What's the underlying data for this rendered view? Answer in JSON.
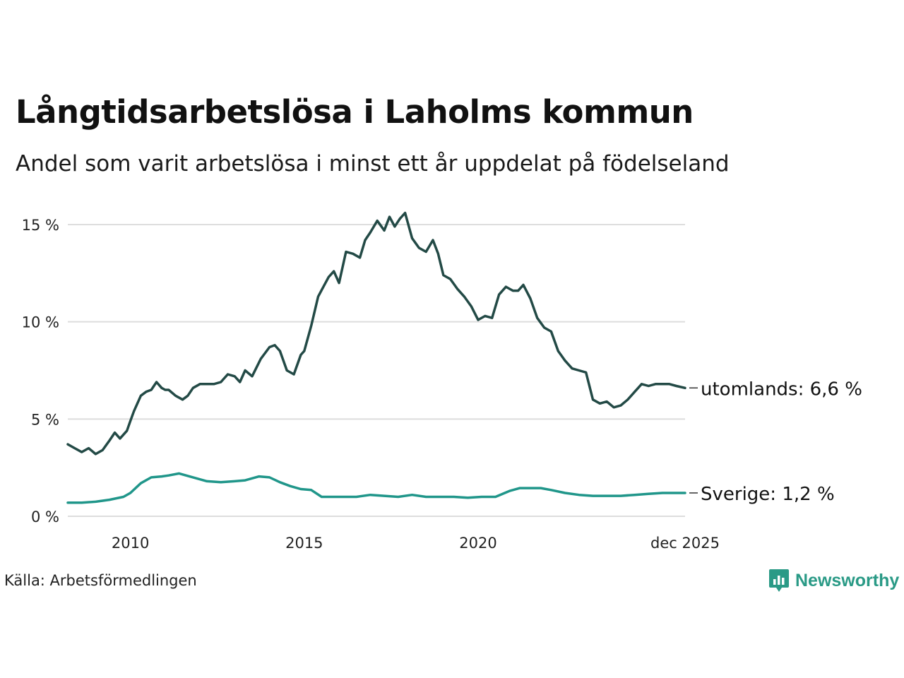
{
  "title": "Långtidsarbetslösa i Laholms kommun",
  "subtitle": "Andel som varit arbetslösa i minst ett år uppdelat på födelseland",
  "source": "Källa: Arbetsförmedlingen",
  "brand": {
    "name": "Newsworthy",
    "icon": "newsworthy-logo-icon"
  },
  "colors": {
    "utomlands": "#234a46",
    "sverige": "#20968a",
    "grid": "#dddddd",
    "text": "#111111",
    "brand": "#2a9a86"
  },
  "chart_data": {
    "type": "line",
    "title": "Långtidsarbetslösa i Laholms kommun",
    "xlabel": "",
    "ylabel": "",
    "xlim": [
      2008.2,
      2025.95
    ],
    "ylim": [
      0,
      15
    ],
    "yticks": [
      0,
      5,
      10,
      15
    ],
    "ytick_labels": [
      "0 %",
      "5 %",
      "10 %",
      "15 %"
    ],
    "xticks": [
      2010,
      2015,
      2020,
      2025.95
    ],
    "xtick_labels": [
      "2010",
      "2015",
      "2020",
      "dec 2025"
    ],
    "grid": true,
    "series": [
      {
        "name": "utomlands",
        "label": "utomlands: 6,6 %",
        "x": [
          2008.2,
          2008.4,
          2008.6,
          2008.8,
          2009.0,
          2009.2,
          2009.4,
          2009.55,
          2009.7,
          2009.9,
          2010.0,
          2010.1,
          2010.3,
          2010.45,
          2010.6,
          2010.75,
          2010.9,
          2011.0,
          2011.1,
          2011.3,
          2011.5,
          2011.65,
          2011.8,
          2012.0,
          2012.2,
          2012.4,
          2012.6,
          2012.8,
          2013.0,
          2013.15,
          2013.3,
          2013.5,
          2013.75,
          2014.0,
          2014.15,
          2014.3,
          2014.5,
          2014.7,
          2014.9,
          2015.0,
          2015.2,
          2015.4,
          2015.55,
          2015.7,
          2015.85,
          2016.0,
          2016.2,
          2016.4,
          2016.6,
          2016.75,
          2016.9,
          2017.1,
          2017.3,
          2017.45,
          2017.6,
          2017.75,
          2017.9,
          2018.1,
          2018.3,
          2018.5,
          2018.7,
          2018.85,
          2019.0,
          2019.2,
          2019.4,
          2019.6,
          2019.8,
          2020.0,
          2020.2,
          2020.4,
          2020.6,
          2020.8,
          2021.0,
          2021.15,
          2021.3,
          2021.5,
          2021.7,
          2021.9,
          2022.1,
          2022.3,
          2022.5,
          2022.7,
          2022.9,
          2023.1,
          2023.3,
          2023.5,
          2023.7,
          2023.9,
          2024.1,
          2024.3,
          2024.5,
          2024.7,
          2024.9,
          2025.1,
          2025.3,
          2025.5,
          2025.7,
          2025.95
        ],
        "y": [
          3.7,
          3.5,
          3.3,
          3.5,
          3.2,
          3.4,
          3.9,
          4.3,
          4.0,
          4.4,
          4.9,
          5.4,
          6.2,
          6.4,
          6.5,
          6.9,
          6.6,
          6.5,
          6.5,
          6.2,
          6.0,
          6.2,
          6.6,
          6.8,
          6.8,
          6.8,
          6.9,
          7.3,
          7.2,
          6.9,
          7.5,
          7.2,
          8.1,
          8.7,
          8.8,
          8.5,
          7.5,
          7.3,
          8.3,
          8.5,
          9.8,
          11.3,
          11.8,
          12.3,
          12.6,
          12.0,
          13.6,
          13.5,
          13.3,
          14.2,
          14.6,
          15.2,
          14.7,
          15.4,
          14.9,
          15.3,
          15.6,
          14.3,
          13.8,
          13.6,
          14.2,
          13.5,
          12.4,
          12.2,
          11.7,
          11.3,
          10.8,
          10.1,
          10.3,
          10.2,
          11.4,
          11.8,
          11.6,
          11.6,
          11.9,
          11.2,
          10.2,
          9.7,
          9.5,
          8.5,
          8.0,
          7.6,
          7.5,
          7.4,
          6.0,
          5.8,
          5.9,
          5.6,
          5.7,
          6.0,
          6.4,
          6.8,
          6.7,
          6.8,
          6.8,
          6.8,
          6.7,
          6.6
        ]
      },
      {
        "name": "Sverige",
        "label": "Sverige: 1,2 %",
        "x": [
          2008.2,
          2008.6,
          2009.0,
          2009.4,
          2009.8,
          2010.0,
          2010.3,
          2010.6,
          2010.9,
          2011.1,
          2011.4,
          2011.8,
          2012.2,
          2012.6,
          2013.0,
          2013.3,
          2013.7,
          2014.0,
          2014.3,
          2014.6,
          2014.9,
          2015.2,
          2015.5,
          2015.8,
          2016.1,
          2016.5,
          2016.9,
          2017.3,
          2017.7,
          2018.1,
          2018.5,
          2018.9,
          2019.3,
          2019.7,
          2020.1,
          2020.5,
          2020.9,
          2021.2,
          2021.5,
          2021.8,
          2022.1,
          2022.5,
          2022.9,
          2023.3,
          2023.7,
          2024.1,
          2024.5,
          2024.9,
          2025.3,
          2025.6,
          2025.95
        ],
        "y": [
          0.7,
          0.7,
          0.75,
          0.85,
          1.0,
          1.2,
          1.7,
          2.0,
          2.05,
          2.1,
          2.2,
          2.0,
          1.8,
          1.75,
          1.8,
          1.85,
          2.05,
          2.0,
          1.75,
          1.55,
          1.4,
          1.35,
          1.0,
          1.0,
          1.0,
          1.0,
          1.1,
          1.05,
          1.0,
          1.1,
          1.0,
          1.0,
          1.0,
          0.95,
          1.0,
          1.0,
          1.3,
          1.45,
          1.45,
          1.45,
          1.35,
          1.2,
          1.1,
          1.05,
          1.05,
          1.05,
          1.1,
          1.15,
          1.2,
          1.2,
          1.2
        ]
      }
    ]
  }
}
